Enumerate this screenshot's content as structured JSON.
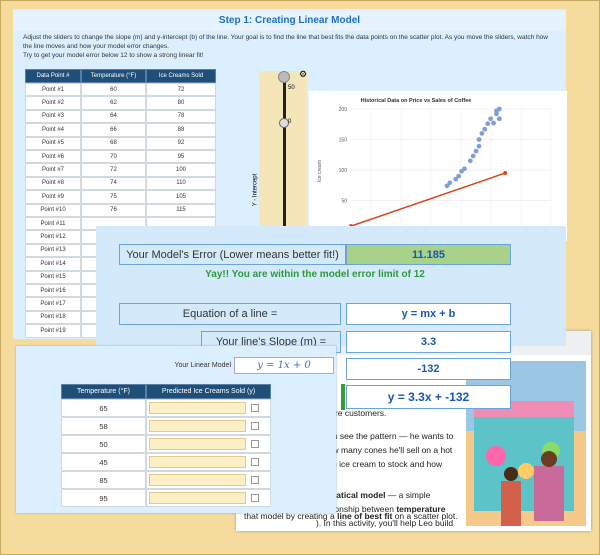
{
  "back_panel": {
    "title": "Step 1: Creating Linear Model",
    "instructions": [
      "Adjust the sliders to change the slope (m) and y-intercept (b) of the line. Your goal is to find the line that best fits the data points on the scatter plot. As you move the sliders, watch how the line moves and how your model error changes.",
      "Try to get your model error below 12 to show a strong linear fit!"
    ],
    "table": {
      "headers": [
        "Data Point #",
        "Temperature (°F)",
        "Ice Creams Sold"
      ],
      "rows": [
        [
          "Point #1",
          "60",
          "72"
        ],
        [
          "Point #2",
          "62",
          "80"
        ],
        [
          "Point #3",
          "64",
          "78"
        ],
        [
          "Point #4",
          "66",
          "88"
        ],
        [
          "Point #5",
          "68",
          "92"
        ],
        [
          "Point #6",
          "70",
          "95"
        ],
        [
          "Point #7",
          "72",
          "100"
        ],
        [
          "Point #8",
          "74",
          "110"
        ],
        [
          "Point #9",
          "75",
          "105"
        ],
        [
          "Point #10",
          "76",
          "115"
        ],
        [
          "Point #11"
        ],
        [
          "Point #12"
        ],
        [
          "Point #13"
        ],
        [
          "Point #14"
        ],
        [
          "Point #15"
        ],
        [
          "Point #16"
        ],
        [
          "Point #17"
        ],
        [
          "Point #18"
        ],
        [
          "Point #19"
        ]
      ]
    },
    "slider": {
      "top_label": "50",
      "mid_label": "0",
      "axis_label": "Y - Intercept"
    },
    "chart": {
      "type": "scatter",
      "title": "Historical Data on Price vs Sales of Coffee",
      "y_label": "Ice cream",
      "xlim": [
        45,
        100
      ],
      "ylim": [
        0,
        200
      ],
      "yticks": [
        50,
        100,
        150,
        200
      ],
      "x": [
        78,
        79,
        81,
        82,
        83,
        84,
        86,
        87,
        88,
        89,
        89,
        90,
        91,
        92,
        93,
        94,
        95,
        95,
        96,
        96
      ],
      "y": [
        74,
        79,
        85,
        90,
        98,
        102,
        115,
        123,
        131,
        139,
        150,
        160,
        167,
        176,
        184,
        177,
        192,
        197,
        184,
        200
      ],
      "point_color": "#7f9fd6",
      "line": {
        "x": [
          45,
          98
        ],
        "y": [
          8,
          95
        ],
        "color": "#d9461c"
      }
    },
    "side_input": "1"
  },
  "middle_panel": {
    "error_label": "Your Model's Error (Lower means better fit!)",
    "error_value": "11.185",
    "message": "Yay!! You are within the model error limit of 12",
    "equation_label": "Equation of a line =",
    "equation_value": "y = mx + b",
    "slope_label": "Your line's Slope (m) =",
    "slope_value": "3.3",
    "intercept_value": "-132",
    "model_value": "y = 3.3x + -132"
  },
  "document": {
    "lines": [
      [
        {
          "text": "g more customers."
        }
      ],
      [
        {
          "text": "than see the pattern — he wants to"
        }
      ],
      [
        {
          "text": "e how many cones he'll sell on a hot"
        }
      ],
      [
        {
          "text": "much ice cream to stock and how"
        }
      ],
      [
        {
          "text": "g."
        }
      ],
      [
        {
          "text": "thematical model",
          "bold": true
        },
        {
          "text": " — a simple"
        }
      ],
      [
        {
          "text": "relationship between "
        },
        {
          "text": "temperature",
          "bold": true
        }
      ],
      [
        {
          "text": "). In this activity, you'll help Leo build"
        }
      ],
      [
        {
          "text": "that model by creating a "
        },
        {
          "text": "line of best fit",
          "bold": true
        },
        {
          "text": " on a scatter plot."
        }
      ]
    ]
  },
  "front_panel": {
    "model_label": "Your Linear Model",
    "model_input": "y = 1x + 0",
    "table": {
      "headers": [
        "Temperature (°F)",
        "Predicted Ice Creams Sold (y)"
      ],
      "rows": [
        65,
        58,
        50,
        45,
        85,
        95
      ]
    }
  }
}
